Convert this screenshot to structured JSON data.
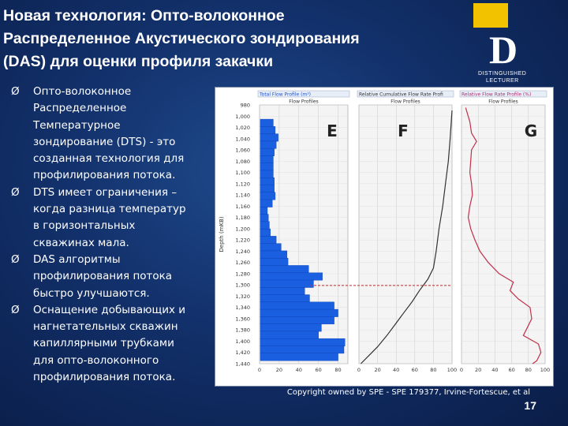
{
  "slide": {
    "title_lines": [
      "Новая технология: Опто-волоконное",
      "Распределенное Акустического зондирования",
      "(DAS) для оценки профиля закачки"
    ],
    "bullets": [
      [
        "Опто-волоконное",
        "Распределенное",
        "Температурное",
        "зондирование (DTS) - это",
        "созданная технология для",
        "профилирования потока."
      ],
      [
        "DTS имеет ограничения –",
        "когда разница температур",
        "в горизонтальных",
        "скважинах мала."
      ],
      [
        "DAS алгоритмы",
        "профилирования потока",
        "быстро улучшаются."
      ],
      [
        "Оснащение добывающих и",
        "нагнетательных скважин",
        "капиллярными трубками",
        "для опто-волоконного",
        "профилирования потока."
      ]
    ],
    "bullet_marker": "Ø",
    "caption": "Copyright owned by SPE - SPE 179377,  Irvine-Fortescue, et al",
    "page_number": "17"
  },
  "logo": {
    "letter": "D",
    "line1": "DISTINGUISHED",
    "line2": "LECTURER",
    "accent_color": "#f2c200"
  },
  "chart_data": {
    "type": "bar",
    "y_axis_label": "Depth (mKB)",
    "depth_ticks": [
      "980",
      "1,000",
      "1,020",
      "1,040",
      "1,060",
      "1,080",
      "1,100",
      "1,120",
      "1,140",
      "1,160",
      "1,180",
      "1,200",
      "1,220",
      "1,240",
      "1,260",
      "1,280",
      "1,300",
      "1,320",
      "1,340",
      "1,360",
      "1,380",
      "1,400",
      "1,420",
      "1,440"
    ],
    "panels": [
      {
        "id": "E",
        "type": "bar",
        "header": "Total Flow Profile (m³)",
        "subheader": "Flow Profiles",
        "x_ticks": [
          "0",
          "20",
          "40",
          "60",
          "80"
        ],
        "xlim": [
          0,
          90
        ],
        "bar_color": "#1a5fe0",
        "bars": [
          {
            "depth": 1012,
            "value": 14
          },
          {
            "depth": 1025,
            "value": 16
          },
          {
            "depth": 1038,
            "value": 19
          },
          {
            "depth": 1051,
            "value": 17
          },
          {
            "depth": 1064,
            "value": 15
          },
          {
            "depth": 1077,
            "value": 14
          },
          {
            "depth": 1090,
            "value": 14
          },
          {
            "depth": 1103,
            "value": 14
          },
          {
            "depth": 1116,
            "value": 15
          },
          {
            "depth": 1129,
            "value": 15
          },
          {
            "depth": 1142,
            "value": 16
          },
          {
            "depth": 1155,
            "value": 13
          },
          {
            "depth": 1168,
            "value": 8
          },
          {
            "depth": 1181,
            "value": 9
          },
          {
            "depth": 1194,
            "value": 10
          },
          {
            "depth": 1207,
            "value": 11
          },
          {
            "depth": 1220,
            "value": 17
          },
          {
            "depth": 1233,
            "value": 22
          },
          {
            "depth": 1246,
            "value": 28
          },
          {
            "depth": 1259,
            "value": 29
          },
          {
            "depth": 1272,
            "value": 50
          },
          {
            "depth": 1285,
            "value": 64
          },
          {
            "depth": 1298,
            "value": 55
          },
          {
            "depth": 1311,
            "value": 46
          },
          {
            "depth": 1324,
            "value": 51
          },
          {
            "depth": 1337,
            "value": 76
          },
          {
            "depth": 1350,
            "value": 80
          },
          {
            "depth": 1363,
            "value": 76
          },
          {
            "depth": 1376,
            "value": 63
          },
          {
            "depth": 1389,
            "value": 60
          },
          {
            "depth": 1402,
            "value": 87
          },
          {
            "depth": 1415,
            "value": 86
          },
          {
            "depth": 1428,
            "value": 80
          }
        ]
      },
      {
        "id": "F",
        "type": "line",
        "header": "Relative Cumulative Flow Rate Profi",
        "subheader": "Flow Profiles",
        "x_ticks": [
          "0",
          "20",
          "40",
          "60",
          "80",
          "100"
        ],
        "xlim": [
          0,
          100
        ],
        "line_color": "#333333",
        "points": [
          {
            "depth": 990,
            "value": 100
          },
          {
            "depth": 1040,
            "value": 98
          },
          {
            "depth": 1080,
            "value": 96
          },
          {
            "depth": 1120,
            "value": 93
          },
          {
            "depth": 1160,
            "value": 90
          },
          {
            "depth": 1200,
            "value": 86
          },
          {
            "depth": 1240,
            "value": 83
          },
          {
            "depth": 1270,
            "value": 80
          },
          {
            "depth": 1290,
            "value": 74
          },
          {
            "depth": 1310,
            "value": 65
          },
          {
            "depth": 1330,
            "value": 57
          },
          {
            "depth": 1350,
            "value": 48
          },
          {
            "depth": 1370,
            "value": 39
          },
          {
            "depth": 1390,
            "value": 30
          },
          {
            "depth": 1410,
            "value": 20
          },
          {
            "depth": 1425,
            "value": 11
          },
          {
            "depth": 1440,
            "value": 2
          }
        ]
      },
      {
        "id": "G",
        "type": "line",
        "header": "Relative Flow Rate Profile (%)",
        "subheader": "Flow Profiles",
        "x_ticks": [
          "0",
          "20",
          "40",
          "60",
          "80",
          "100"
        ],
        "xlim": [
          0,
          100
        ],
        "line_color": "#c0304a",
        "points": [
          {
            "depth": 985,
            "value": 5
          },
          {
            "depth": 1010,
            "value": 10
          },
          {
            "depth": 1030,
            "value": 12
          },
          {
            "depth": 1045,
            "value": 18
          },
          {
            "depth": 1060,
            "value": 12
          },
          {
            "depth": 1080,
            "value": 11
          },
          {
            "depth": 1100,
            "value": 10
          },
          {
            "depth": 1120,
            "value": 12
          },
          {
            "depth": 1140,
            "value": 13
          },
          {
            "depth": 1160,
            "value": 10
          },
          {
            "depth": 1180,
            "value": 8
          },
          {
            "depth": 1200,
            "value": 11
          },
          {
            "depth": 1220,
            "value": 16
          },
          {
            "depth": 1240,
            "value": 22
          },
          {
            "depth": 1260,
            "value": 32
          },
          {
            "depth": 1280,
            "value": 45
          },
          {
            "depth": 1295,
            "value": 62
          },
          {
            "depth": 1310,
            "value": 58
          },
          {
            "depth": 1325,
            "value": 68
          },
          {
            "depth": 1340,
            "value": 82
          },
          {
            "depth": 1360,
            "value": 84
          },
          {
            "depth": 1375,
            "value": 79
          },
          {
            "depth": 1390,
            "value": 74
          },
          {
            "depth": 1405,
            "value": 92
          },
          {
            "depth": 1420,
            "value": 95
          },
          {
            "depth": 1435,
            "value": 90
          },
          {
            "depth": 1440,
            "value": 85
          }
        ]
      }
    ],
    "reference_depth": 1301,
    "reference_line_color": "#c03030",
    "reference_line_style": "dashed"
  }
}
